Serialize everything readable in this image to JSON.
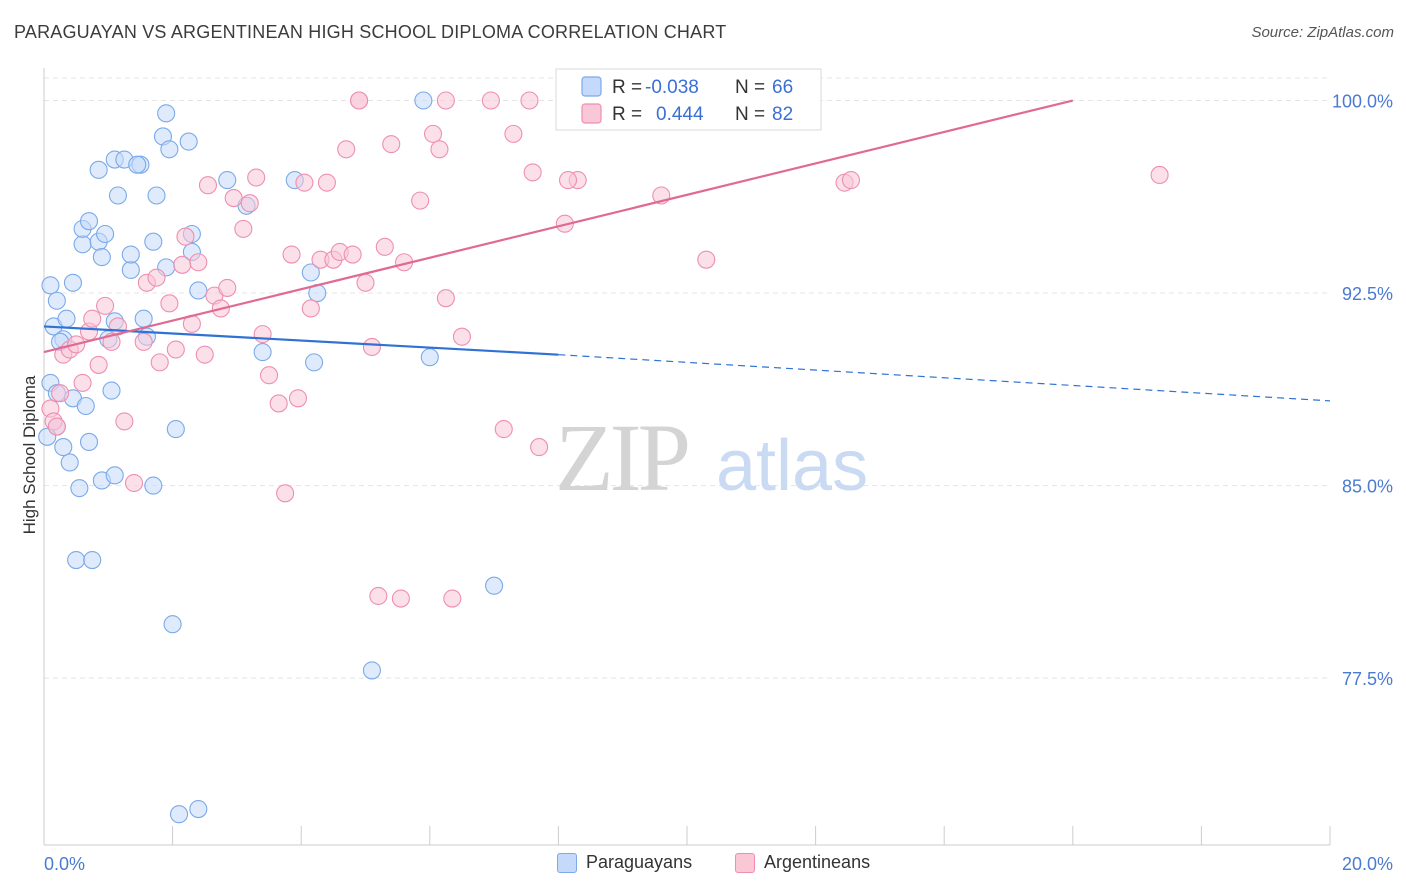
{
  "chart_data": {
    "type": "scatter",
    "title": "PARAGUAYAN VS ARGENTINEAN HIGH SCHOOL DIPLOMA CORRELATION CHART",
    "source": "Source: ZipAtlas.com",
    "ylabel": "High School Diploma",
    "xlabel": "",
    "xlim": [
      0,
      20
    ],
    "ylim": [
      71,
      101.5
    ],
    "y_ticks": [
      {
        "value": 100,
        "label": "100.0%"
      },
      {
        "value": 92.5,
        "label": "92.5%"
      },
      {
        "value": 85,
        "label": "85.0%"
      },
      {
        "value": 77.5,
        "label": "77.5%"
      }
    ],
    "x_tick_labels": {
      "min": "0.0%",
      "max": "20.0%"
    },
    "grid": true,
    "legend_placement": "top-center",
    "watermark": {
      "zip": "ZIP",
      "atlas": "atlas"
    },
    "series": [
      {
        "name": "Paraguayans",
        "color": "#7aaae8",
        "fill": "#c5dafa",
        "legend": {
          "r_label": "R = ",
          "r_value": "-0.038",
          "n_label": "N = ",
          "n_value": "66"
        },
        "trend": {
          "x0": 0,
          "y0": 91.2,
          "x1": 8,
          "y1": 90.1,
          "dash_to_x": 20,
          "dash_to_y": 88.3
        },
        "points": [
          [
            0.1,
            92.8
          ],
          [
            0.2,
            92.2
          ],
          [
            0.15,
            91.2
          ],
          [
            0.35,
            91.5
          ],
          [
            0.3,
            90.7
          ],
          [
            0.25,
            90.6
          ],
          [
            0.1,
            89.0
          ],
          [
            0.2,
            88.6
          ],
          [
            0.45,
            88.4
          ],
          [
            0.65,
            88.1
          ],
          [
            0.2,
            87.3
          ],
          [
            0.05,
            86.9
          ],
          [
            0.7,
            86.7
          ],
          [
            0.4,
            85.9
          ],
          [
            0.55,
            84.9
          ],
          [
            0.9,
            85.2
          ],
          [
            1.1,
            85.4
          ],
          [
            1.7,
            85.0
          ],
          [
            0.5,
            82.1
          ],
          [
            0.75,
            82.1
          ],
          [
            2.0,
            79.6
          ],
          [
            2.1,
            72.2
          ],
          [
            2.4,
            72.4
          ],
          [
            0.45,
            92.9
          ],
          [
            0.6,
            94.4
          ],
          [
            0.6,
            95.0
          ],
          [
            0.7,
            95.3
          ],
          [
            0.85,
            94.5
          ],
          [
            0.9,
            93.9
          ],
          [
            0.95,
            94.8
          ],
          [
            0.85,
            97.3
          ],
          [
            1.1,
            97.7
          ],
          [
            1.15,
            96.3
          ],
          [
            1.25,
            97.7
          ],
          [
            1.5,
            97.5
          ],
          [
            1.45,
            97.5
          ],
          [
            1.7,
            94.5
          ],
          [
            1.35,
            93.4
          ],
          [
            1.35,
            94.0
          ],
          [
            1.1,
            91.4
          ],
          [
            1.55,
            91.5
          ],
          [
            1.6,
            90.8
          ],
          [
            1.0,
            90.7
          ],
          [
            1.05,
            88.7
          ],
          [
            1.9,
            93.5
          ],
          [
            1.75,
            96.3
          ],
          [
            1.85,
            98.6
          ],
          [
            1.9,
            99.5
          ],
          [
            1.95,
            98.1
          ],
          [
            2.25,
            98.4
          ],
          [
            2.3,
            94.8
          ],
          [
            2.3,
            94.1
          ],
          [
            2.4,
            92.6
          ],
          [
            2.85,
            96.9
          ],
          [
            3.15,
            95.9
          ],
          [
            3.4,
            90.2
          ],
          [
            3.9,
            96.9
          ],
          [
            4.15,
            93.3
          ],
          [
            4.25,
            92.5
          ],
          [
            4.2,
            89.8
          ],
          [
            5.1,
            77.8
          ],
          [
            5.9,
            100.0
          ],
          [
            6.0,
            90.0
          ],
          [
            7.0,
            81.1
          ],
          [
            2.05,
            87.2
          ],
          [
            0.3,
            86.5
          ]
        ]
      },
      {
        "name": "Argentineans",
        "color": "#ee8fb0",
        "fill": "#fac7d7",
        "legend": {
          "r_label": "R = ",
          "r_value": "0.444",
          "n_label": "N = ",
          "n_value": "82"
        },
        "trend": {
          "x0": 0,
          "y0": 90.2,
          "x1": 16,
          "y1": 100.0
        },
        "points": [
          [
            0.1,
            88.0
          ],
          [
            0.15,
            87.5
          ],
          [
            0.2,
            87.3
          ],
          [
            0.25,
            88.6
          ],
          [
            0.3,
            90.1
          ],
          [
            0.4,
            90.3
          ],
          [
            0.5,
            90.5
          ],
          [
            0.6,
            89.0
          ],
          [
            0.7,
            91.0
          ],
          [
            0.75,
            91.5
          ],
          [
            0.85,
            89.7
          ],
          [
            0.95,
            92.0
          ],
          [
            1.05,
            90.6
          ],
          [
            1.15,
            91.2
          ],
          [
            1.25,
            87.5
          ],
          [
            1.4,
            85.1
          ],
          [
            1.55,
            90.6
          ],
          [
            1.6,
            92.9
          ],
          [
            1.75,
            93.1
          ],
          [
            1.8,
            89.8
          ],
          [
            1.95,
            92.1
          ],
          [
            2.05,
            90.3
          ],
          [
            2.15,
            93.6
          ],
          [
            2.2,
            94.7
          ],
          [
            2.3,
            91.3
          ],
          [
            2.4,
            93.7
          ],
          [
            2.5,
            90.1
          ],
          [
            2.55,
            96.7
          ],
          [
            2.65,
            92.4
          ],
          [
            2.75,
            91.9
          ],
          [
            2.85,
            92.7
          ],
          [
            2.95,
            96.2
          ],
          [
            3.1,
            95.0
          ],
          [
            3.2,
            96.0
          ],
          [
            3.3,
            97.0
          ],
          [
            3.4,
            90.9
          ],
          [
            3.5,
            89.3
          ],
          [
            3.65,
            88.2
          ],
          [
            3.75,
            84.7
          ],
          [
            3.85,
            94.0
          ],
          [
            3.95,
            88.4
          ],
          [
            4.05,
            96.8
          ],
          [
            4.15,
            91.9
          ],
          [
            4.3,
            93.8
          ],
          [
            4.4,
            96.8
          ],
          [
            4.5,
            93.8
          ],
          [
            4.6,
            94.1
          ],
          [
            4.7,
            98.1
          ],
          [
            4.8,
            94.0
          ],
          [
            4.9,
            100.0
          ],
          [
            5.0,
            92.9
          ],
          [
            5.1,
            90.4
          ],
          [
            5.2,
            80.7
          ],
          [
            5.3,
            94.3
          ],
          [
            5.4,
            98.3
          ],
          [
            5.55,
            80.6
          ],
          [
            5.6,
            93.7
          ],
          [
            5.85,
            96.1
          ],
          [
            6.05,
            98.7
          ],
          [
            6.15,
            98.1
          ],
          [
            6.25,
            92.3
          ],
          [
            6.35,
            80.6
          ],
          [
            6.5,
            90.8
          ],
          [
            6.25,
            100.0
          ],
          [
            6.95,
            100.0
          ],
          [
            7.15,
            87.2
          ],
          [
            7.3,
            98.7
          ],
          [
            7.55,
            100.0
          ],
          [
            7.6,
            97.2
          ],
          [
            7.7,
            86.5
          ],
          [
            8.1,
            95.2
          ],
          [
            8.3,
            96.9
          ],
          [
            8.6,
            100.0
          ],
          [
            9.1,
            100.0
          ],
          [
            9.6,
            96.3
          ],
          [
            10.1,
            100.0
          ],
          [
            10.3,
            93.8
          ],
          [
            12.45,
            96.8
          ],
          [
            12.55,
            96.9
          ],
          [
            17.35,
            97.1
          ],
          [
            4.9,
            100.0
          ],
          [
            8.15,
            96.9
          ]
        ]
      }
    ]
  }
}
